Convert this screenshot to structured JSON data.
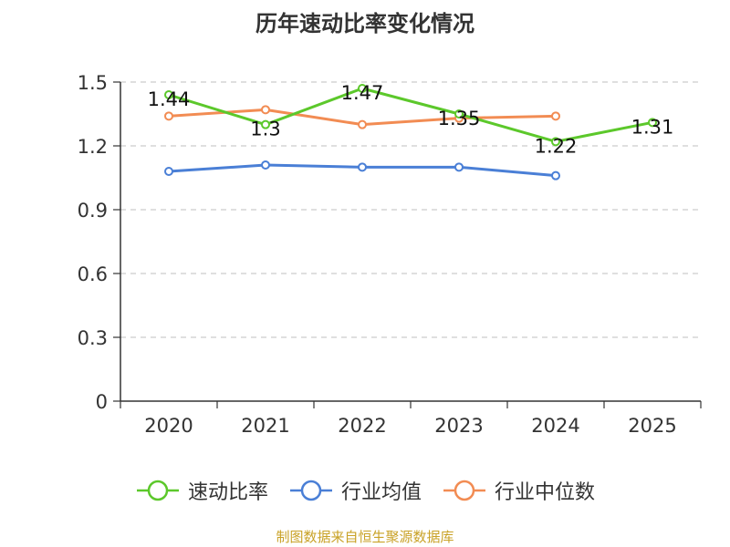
{
  "chart_data": {
    "type": "line",
    "title": "历年速动比率变化情况",
    "categories": [
      "2020",
      "2021",
      "2022",
      "2023",
      "2024",
      "2025"
    ],
    "ylim": [
      0,
      1.5
    ],
    "yticks": [
      "0",
      "0.3",
      "0.6",
      "0.9",
      "1.2",
      "1.5"
    ],
    "ytick_values": [
      0,
      0.3,
      0.6,
      0.9,
      1.2,
      1.5
    ],
    "grid": true,
    "legend_position": "bottom",
    "series": [
      {
        "name": "速动比率",
        "color": "#5cc82b",
        "values": [
          1.44,
          1.3,
          1.47,
          1.35,
          1.22,
          1.31
        ],
        "labels": [
          "1.44",
          "1.3",
          "1.47",
          "1.35",
          "1.22",
          "1.31"
        ],
        "show_labels": true
      },
      {
        "name": "行业均值",
        "color": "#4a7fd6",
        "values": [
          1.08,
          1.11,
          1.1,
          1.1,
          1.06,
          null
        ],
        "show_labels": false
      },
      {
        "name": "行业中位数",
        "color": "#f28c53",
        "values": [
          1.34,
          1.37,
          1.3,
          1.33,
          1.34,
          null
        ],
        "show_labels": false
      }
    ]
  },
  "source": {
    "text": "制图数据来自恒生聚源数据库",
    "color": "#c9a227"
  }
}
